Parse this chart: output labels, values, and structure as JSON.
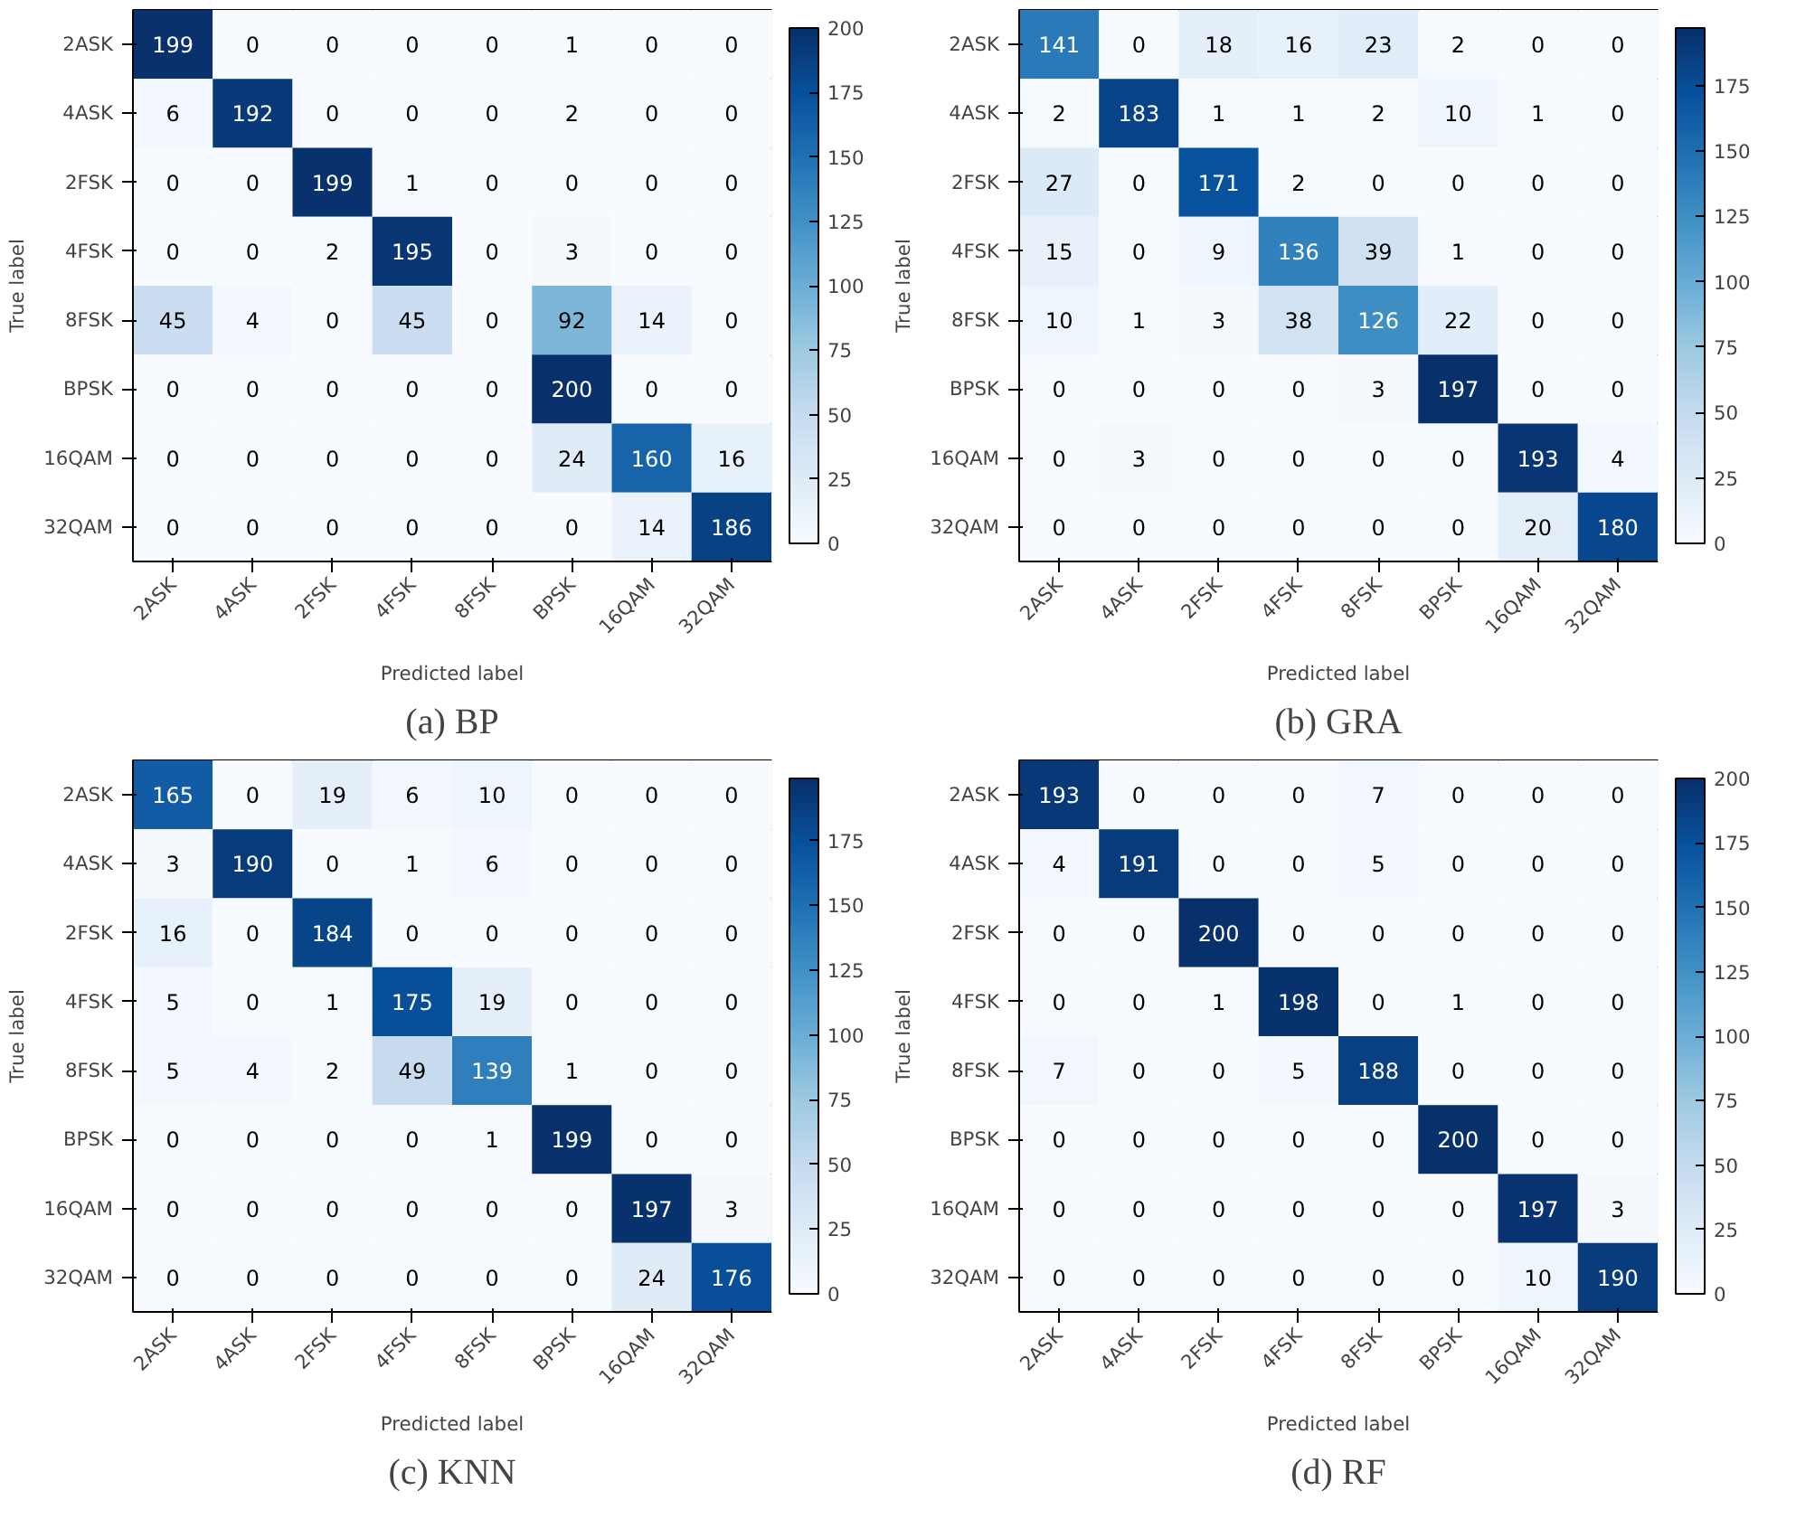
{
  "chart_data": [
    {
      "type": "heatmap",
      "title": "(a) BP",
      "xlabel": "Predicted label",
      "ylabel": "True label",
      "categories": [
        "2ASK",
        "4ASK",
        "2FSK",
        "4FSK",
        "8FSK",
        "BPSK",
        "16QAM",
        "32QAM"
      ],
      "y_categories": [
        "2ASK",
        "4ASK",
        "2FSK",
        "4FSK",
        "8FSK",
        "BPSK",
        "16QAM",
        "32QAM"
      ],
      "cells": [
        [
          199,
          0,
          0,
          0,
          0,
          1,
          0,
          0
        ],
        [
          6,
          192,
          0,
          0,
          0,
          2,
          0,
          0
        ],
        [
          0,
          0,
          199,
          1,
          0,
          0,
          0,
          0
        ],
        [
          0,
          0,
          2,
          195,
          0,
          3,
          0,
          0
        ],
        [
          45,
          4,
          0,
          45,
          0,
          92,
          14,
          0
        ],
        [
          0,
          0,
          0,
          0,
          0,
          200,
          0,
          0
        ],
        [
          0,
          0,
          0,
          0,
          0,
          24,
          160,
          16
        ],
        [
          0,
          0,
          0,
          0,
          0,
          0,
          14,
          186
        ]
      ],
      "clim": [
        0,
        200
      ],
      "cticks": [
        0,
        25,
        50,
        75,
        100,
        125,
        150,
        175,
        200
      ],
      "data_labels": true
    },
    {
      "type": "heatmap",
      "title": "(b) GRA",
      "xlabel": "Predicted label",
      "ylabel": "True label",
      "categories": [
        "2ASK",
        "4ASK",
        "2FSK",
        "4FSK",
        "8FSK",
        "BPSK",
        "16QAM",
        "32QAM"
      ],
      "y_categories": [
        "2ASK",
        "4ASK",
        "2FSK",
        "4FSK",
        "8FSK",
        "BPSK",
        "16QAM",
        "32QAM"
      ],
      "cells": [
        [
          141,
          0,
          18,
          16,
          23,
          2,
          0,
          0
        ],
        [
          2,
          183,
          1,
          1,
          2,
          10,
          1,
          0
        ],
        [
          27,
          0,
          171,
          2,
          0,
          0,
          0,
          0
        ],
        [
          15,
          0,
          9,
          136,
          39,
          1,
          0,
          0
        ],
        [
          10,
          1,
          3,
          38,
          126,
          22,
          0,
          0
        ],
        [
          0,
          0,
          0,
          0,
          3,
          197,
          0,
          0
        ],
        [
          0,
          3,
          0,
          0,
          0,
          0,
          193,
          4
        ],
        [
          0,
          0,
          0,
          0,
          0,
          0,
          20,
          180
        ]
      ],
      "clim": [
        0,
        197
      ],
      "cticks": [
        0,
        25,
        50,
        75,
        100,
        125,
        150,
        175
      ],
      "data_labels": true
    },
    {
      "type": "heatmap",
      "title": "(c) KNN",
      "xlabel": "Predicted label",
      "ylabel": "True label",
      "categories": [
        "2ASK",
        "4ASK",
        "2FSK",
        "4FSK",
        "8FSK",
        "BPSK",
        "16QAM",
        "32QAM"
      ],
      "y_categories": [
        "2ASK",
        "4ASK",
        "2FSK",
        "4FSK",
        "8FSK",
        "BPSK",
        "16QAM",
        "32QAM"
      ],
      "cells": [
        [
          165,
          0,
          19,
          6,
          10,
          0,
          0,
          0
        ],
        [
          3,
          190,
          0,
          1,
          6,
          0,
          0,
          0
        ],
        [
          16,
          0,
          184,
          0,
          0,
          0,
          0,
          0
        ],
        [
          5,
          0,
          1,
          175,
          19,
          0,
          0,
          0
        ],
        [
          5,
          4,
          2,
          49,
          139,
          1,
          0,
          0
        ],
        [
          0,
          0,
          0,
          0,
          1,
          199,
          0,
          0
        ],
        [
          0,
          0,
          0,
          0,
          0,
          0,
          197,
          3
        ],
        [
          0,
          0,
          0,
          0,
          0,
          0,
          24,
          176
        ]
      ],
      "clim": [
        0,
        199
      ],
      "cticks": [
        0,
        25,
        50,
        75,
        100,
        125,
        150,
        175
      ],
      "data_labels": true
    },
    {
      "type": "heatmap",
      "title": "(d) RF",
      "xlabel": "Predicted label",
      "ylabel": "True label",
      "categories": [
        "2ASK",
        "4ASK",
        "2FSK",
        "4FSK",
        "8FSK",
        "BPSK",
        "16QAM",
        "32QAM"
      ],
      "y_categories": [
        "2ASK",
        "4ASK",
        "2FSK",
        "4FSK",
        "8FSK",
        "BPSK",
        "16QAM",
        "32QAM"
      ],
      "cells": [
        [
          193,
          0,
          0,
          0,
          7,
          0,
          0,
          0
        ],
        [
          4,
          191,
          0,
          0,
          5,
          0,
          0,
          0
        ],
        [
          0,
          0,
          200,
          0,
          0,
          0,
          0,
          0
        ],
        [
          0,
          0,
          1,
          198,
          0,
          1,
          0,
          0
        ],
        [
          7,
          0,
          0,
          5,
          188,
          0,
          0,
          0
        ],
        [
          0,
          0,
          0,
          0,
          0,
          200,
          0,
          0
        ],
        [
          0,
          0,
          0,
          0,
          0,
          0,
          197,
          3
        ],
        [
          0,
          0,
          0,
          0,
          0,
          0,
          10,
          190
        ]
      ],
      "clim": [
        0,
        200
      ],
      "cticks": [
        0,
        25,
        50,
        75,
        100,
        125,
        150,
        175,
        200
      ],
      "data_labels": true
    }
  ]
}
